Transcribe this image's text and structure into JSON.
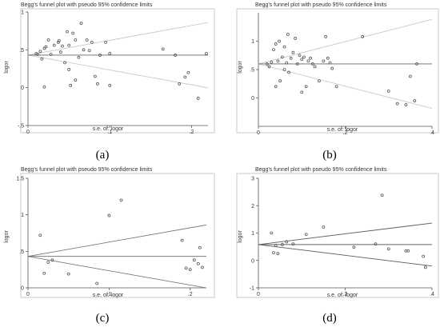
{
  "chart_data": [
    {
      "panel": "(a)",
      "type": "scatter",
      "title": "Begg's funnel plot with pseudo 95% confidence limits",
      "xlabel": "s.e. of: logor",
      "ylabel": "logor",
      "xlim": [
        0,
        0.22
      ],
      "ylim": [
        -0.5,
        1.0
      ],
      "xticks": [
        0,
        0.1,
        0.2
      ],
      "xtick_labels": [
        "0",
        ".1",
        ".2"
      ],
      "yticks": [
        -0.5,
        0,
        0.5,
        1
      ],
      "ytick_labels": [
        "-.5",
        "0",
        ".5",
        "1"
      ],
      "pooled_logor": 0.43,
      "limit_color": "#c9c9c9",
      "points": [
        {
          "x": 0.01,
          "y": 0.45
        },
        {
          "x": 0.012,
          "y": 0.44
        },
        {
          "x": 0.015,
          "y": 0.48
        },
        {
          "x": 0.017,
          "y": 0.38
        },
        {
          "x": 0.02,
          "y": 0.52
        },
        {
          "x": 0.022,
          "y": 0.54
        },
        {
          "x": 0.02,
          "y": 0.01
        },
        {
          "x": 0.025,
          "y": 0.63
        },
        {
          "x": 0.028,
          "y": 0.44
        },
        {
          "x": 0.032,
          "y": 0.56
        },
        {
          "x": 0.037,
          "y": 0.6
        },
        {
          "x": 0.038,
          "y": 0.62
        },
        {
          "x": 0.04,
          "y": 0.47
        },
        {
          "x": 0.042,
          "y": 0.55
        },
        {
          "x": 0.045,
          "y": 0.33
        },
        {
          "x": 0.048,
          "y": 0.74
        },
        {
          "x": 0.05,
          "y": 0.24
        },
        {
          "x": 0.05,
          "y": 0.56
        },
        {
          "x": 0.052,
          "y": 0.03
        },
        {
          "x": 0.055,
          "y": 0.72
        },
        {
          "x": 0.058,
          "y": 0.63
        },
        {
          "x": 0.058,
          "y": 0.1
        },
        {
          "x": 0.062,
          "y": 0.4
        },
        {
          "x": 0.065,
          "y": 0.85
        },
        {
          "x": 0.068,
          "y": 0.5
        },
        {
          "x": 0.072,
          "y": 0.63
        },
        {
          "x": 0.075,
          "y": 0.49
        },
        {
          "x": 0.078,
          "y": 0.6
        },
        {
          "x": 0.082,
          "y": 0.15
        },
        {
          "x": 0.085,
          "y": 0.05
        },
        {
          "x": 0.088,
          "y": 0.43
        },
        {
          "x": 0.095,
          "y": 0.6
        },
        {
          "x": 0.1,
          "y": 0.03
        },
        {
          "x": 0.1,
          "y": 0.45
        },
        {
          "x": 0.165,
          "y": 0.51
        },
        {
          "x": 0.18,
          "y": 0.43
        },
        {
          "x": 0.185,
          "y": 0.05
        },
        {
          "x": 0.192,
          "y": 0.14
        },
        {
          "x": 0.196,
          "y": 0.2
        },
        {
          "x": 0.208,
          "y": -0.14
        },
        {
          "x": 0.218,
          "y": 0.45
        }
      ]
    },
    {
      "panel": "(b)",
      "type": "scatter",
      "title": "Begg's funnel plot with pseudo 95% confidence limits",
      "xlabel": "s.e. of: logor",
      "ylabel": "logor",
      "xlim": [
        0,
        0.4
      ],
      "ylim": [
        -0.5,
        1.5
      ],
      "xticks": [
        0,
        0.2,
        0.4
      ],
      "xtick_labels": [
        "0",
        ".2",
        ".4"
      ],
      "yticks": [
        0,
        0.5,
        1
      ],
      "ytick_labels": [
        "0",
        ".5",
        "1"
      ],
      "pooled_logor": 0.6,
      "limit_color": "#c9c9c9",
      "points": [
        {
          "x": 0.02,
          "y": 0.6
        },
        {
          "x": 0.025,
          "y": 0.55
        },
        {
          "x": 0.03,
          "y": 0.63
        },
        {
          "x": 0.035,
          "y": 0.85
        },
        {
          "x": 0.04,
          "y": 0.95
        },
        {
          "x": 0.04,
          "y": 0.2
        },
        {
          "x": 0.045,
          "y": 0.65
        },
        {
          "x": 0.048,
          "y": 1.0
        },
        {
          "x": 0.05,
          "y": 0.3
        },
        {
          "x": 0.055,
          "y": 0.72
        },
        {
          "x": 0.06,
          "y": 0.5
        },
        {
          "x": 0.06,
          "y": 0.9
        },
        {
          "x": 0.065,
          "y": 0.62
        },
        {
          "x": 0.068,
          "y": 1.12
        },
        {
          "x": 0.07,
          "y": 0.45
        },
        {
          "x": 0.075,
          "y": 0.7
        },
        {
          "x": 0.08,
          "y": 0.8
        },
        {
          "x": 0.085,
          "y": 1.05
        },
        {
          "x": 0.09,
          "y": 0.6
        },
        {
          "x": 0.095,
          "y": 0.75
        },
        {
          "x": 0.1,
          "y": 0.68
        },
        {
          "x": 0.1,
          "y": 0.1
        },
        {
          "x": 0.105,
          "y": 0.72
        },
        {
          "x": 0.11,
          "y": 0.2
        },
        {
          "x": 0.115,
          "y": 0.65
        },
        {
          "x": 0.12,
          "y": 0.7
        },
        {
          "x": 0.125,
          "y": 0.6
        },
        {
          "x": 0.13,
          "y": 0.55
        },
        {
          "x": 0.14,
          "y": 0.3
        },
        {
          "x": 0.15,
          "y": 0.65
        },
        {
          "x": 0.155,
          "y": 1.08
        },
        {
          "x": 0.16,
          "y": 0.7
        },
        {
          "x": 0.165,
          "y": 0.62
        },
        {
          "x": 0.17,
          "y": 0.52
        },
        {
          "x": 0.18,
          "y": 0.2
        },
        {
          "x": 0.24,
          "y": 1.08
        },
        {
          "x": 0.3,
          "y": 0.12
        },
        {
          "x": 0.32,
          "y": -0.1
        },
        {
          "x": 0.34,
          "y": -0.12
        },
        {
          "x": 0.35,
          "y": 0.38
        },
        {
          "x": 0.36,
          "y": -0.05
        },
        {
          "x": 0.365,
          "y": 0.6
        }
      ]
    },
    {
      "panel": "(c)",
      "type": "scatter",
      "title": "Begg's funnel plot with pseudo 95% confidence limits",
      "xlabel": "s.e. of: logor",
      "ylabel": "logor",
      "xlim": [
        0,
        0.22
      ],
      "ylim": [
        0,
        1.5
      ],
      "xticks": [
        0,
        0.1,
        0.2
      ],
      "xtick_labels": [
        "0",
        ".1",
        ".2"
      ],
      "yticks": [
        0,
        0.5,
        1,
        1.5
      ],
      "ytick_labels": [
        "0",
        ".5",
        "1",
        "1.5"
      ],
      "pooled_logor": 0.43,
      "limit_color": "#7a7a7a",
      "points": [
        {
          "x": 0.015,
          "y": 0.72
        },
        {
          "x": 0.02,
          "y": 0.2
        },
        {
          "x": 0.025,
          "y": 0.35
        },
        {
          "x": 0.03,
          "y": 0.38
        },
        {
          "x": 0.05,
          "y": 0.19
        },
        {
          "x": 0.085,
          "y": 0.06
        },
        {
          "x": 0.1,
          "y": 0.99
        },
        {
          "x": 0.115,
          "y": 1.2
        },
        {
          "x": 0.19,
          "y": 0.65
        },
        {
          "x": 0.195,
          "y": 0.27
        },
        {
          "x": 0.2,
          "y": 0.25
        },
        {
          "x": 0.205,
          "y": 0.38
        },
        {
          "x": 0.21,
          "y": 0.33
        },
        {
          "x": 0.212,
          "y": 0.55
        },
        {
          "x": 0.215,
          "y": 0.28
        }
      ]
    },
    {
      "panel": "(d)",
      "type": "scatter",
      "title": "Begg's funnel plot with pseudo 95% confidence limits",
      "xlabel": "s.e. of: logor",
      "ylabel": "logor",
      "xlim": [
        0,
        0.4
      ],
      "ylim": [
        -1,
        3
      ],
      "xticks": [
        0,
        0.2,
        0.4
      ],
      "xtick_labels": [
        "0",
        ".2",
        ".4"
      ],
      "yticks": [
        -1,
        0,
        1,
        2,
        3
      ],
      "ytick_labels": [
        "-1",
        "0",
        "1",
        "2",
        "3"
      ],
      "pooled_logor": 0.58,
      "limit_color": "#5a5a5a",
      "points": [
        {
          "x": 0.03,
          "y": 1.0
        },
        {
          "x": 0.035,
          "y": 0.28
        },
        {
          "x": 0.04,
          "y": 0.55
        },
        {
          "x": 0.045,
          "y": 0.25
        },
        {
          "x": 0.055,
          "y": 0.58
        },
        {
          "x": 0.065,
          "y": 0.68
        },
        {
          "x": 0.08,
          "y": 0.6
        },
        {
          "x": 0.11,
          "y": 0.95
        },
        {
          "x": 0.15,
          "y": 1.22
        },
        {
          "x": 0.22,
          "y": 0.48
        },
        {
          "x": 0.27,
          "y": 0.6
        },
        {
          "x": 0.285,
          "y": 2.38
        },
        {
          "x": 0.3,
          "y": 0.42
        },
        {
          "x": 0.34,
          "y": 0.35
        },
        {
          "x": 0.345,
          "y": 0.35
        },
        {
          "x": 0.38,
          "y": 0.15
        },
        {
          "x": 0.385,
          "y": -0.25
        }
      ]
    }
  ]
}
